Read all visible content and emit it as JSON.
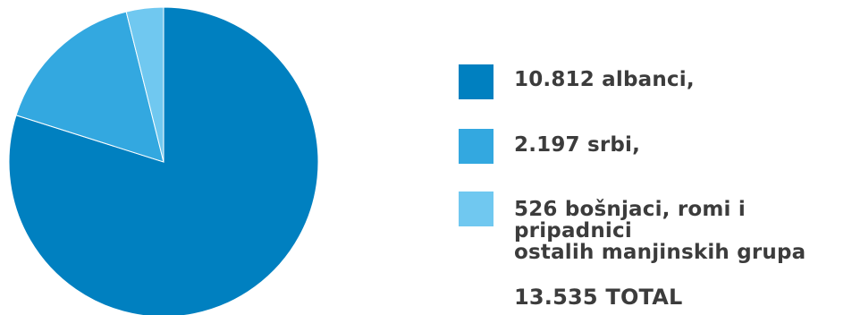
{
  "chart_data": {
    "type": "pie",
    "categories": [
      "albanci",
      "srbi",
      "bošnjaci, romi i pripadnici ostalih manjinskih grupa"
    ],
    "values": [
      10812,
      2197,
      526
    ],
    "colors": [
      "#0080c0",
      "#33a8e0",
      "#70c8f0"
    ],
    "legend_placement": "right",
    "legend": [
      {
        "label": "10.812 albanci,",
        "color": "#0080c0"
      },
      {
        "label": "2.197 srbi,",
        "color": "#33a8e0"
      },
      {
        "label": "526 bošnjaci, romi i pripadnici\nostalih manjinskih grupa",
        "color": "#70c8f0"
      }
    ],
    "total_label": "13.535 TOTAL"
  }
}
